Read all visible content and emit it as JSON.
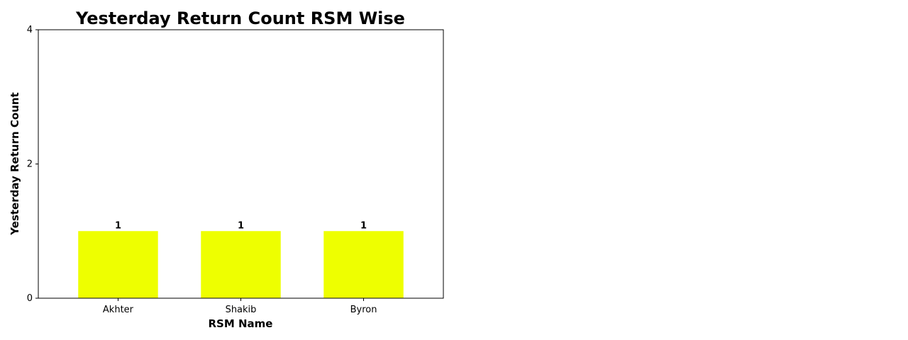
{
  "chart_data": {
    "type": "bar",
    "title": "Yesterday Return Count RSM Wise",
    "xlabel": "RSM Name",
    "ylabel": "Yesterday Return Count",
    "categories": [
      "Akhter",
      "Shakib",
      "Byron"
    ],
    "values": [
      1,
      1,
      1
    ],
    "value_labels": [
      "1",
      "1",
      "1"
    ],
    "ylim": [
      0,
      4
    ],
    "yticks": [
      0,
      2,
      4
    ],
    "ytick_labels": [
      "0",
      "2",
      "4"
    ],
    "grid": false,
    "legend": "none",
    "colors": {
      "bar": "#eeff00",
      "axis": "#000000"
    }
  }
}
